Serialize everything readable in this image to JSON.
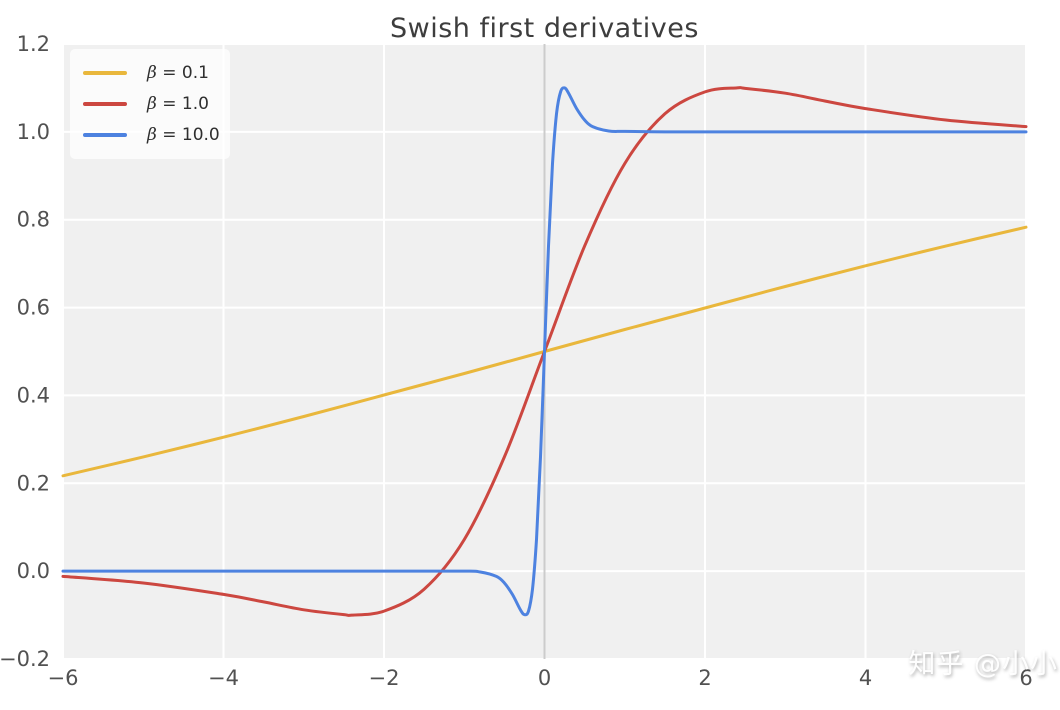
{
  "chart_data": {
    "type": "line",
    "title": "Swish first derivatives",
    "xlabel": "",
    "ylabel": "",
    "xlim": [
      -6,
      6
    ],
    "ylim": [
      -0.2,
      1.2
    ],
    "grid": true,
    "legend_position": "upper left",
    "plot_background": "#f0f0f0",
    "grid_color": "#ffffff",
    "tick_color": "#515151",
    "axvline": {
      "x": 0,
      "color": "#cccccc"
    },
    "x_ticks": {
      "values": [
        -6,
        -4,
        -2,
        0,
        2,
        4,
        6
      ],
      "labels": [
        "−6",
        "−4",
        "−2",
        "0",
        "2",
        "4",
        "6"
      ]
    },
    "y_ticks": {
      "values": [
        -0.2,
        0.0,
        0.2,
        0.4,
        0.6,
        0.8,
        1.0,
        1.2
      ],
      "labels": [
        "−0.2",
        "0.0",
        "0.2",
        "0.4",
        "0.6",
        "0.8",
        "1.0",
        "1.2"
      ]
    },
    "series": [
      {
        "name": "beta = 0.1",
        "symbol": "β",
        "value_text": " = 0.1",
        "color": "#e9b73c",
        "x": [
          -6,
          -5,
          -4,
          -3,
          -2,
          -1,
          0,
          1,
          2,
          3,
          4,
          5,
          6
        ],
        "y": [
          0.217,
          0.26,
          0.305,
          0.352,
          0.401,
          0.45,
          0.5,
          0.55,
          0.599,
          0.648,
          0.695,
          0.74,
          0.783
        ]
      },
      {
        "name": "beta = 1.0",
        "symbol": "β",
        "value_text": " = 1.0",
        "color": "#cc4740",
        "x": [
          -6,
          -5,
          -4,
          -3.5,
          -3,
          -2.5,
          -2.4,
          -2,
          -1.5,
          -1,
          -0.5,
          0,
          0.5,
          1,
          1.5,
          2,
          2.4,
          2.5,
          3,
          3.5,
          4,
          5,
          6
        ],
        "y": [
          -0.012,
          -0.027,
          -0.053,
          -0.07,
          -0.088,
          -0.099,
          -0.1,
          -0.091,
          -0.041,
          0.072,
          0.26,
          0.5,
          0.74,
          0.928,
          1.041,
          1.091,
          1.1,
          1.099,
          1.088,
          1.07,
          1.053,
          1.027,
          1.012
        ]
      },
      {
        "name": "beta = 10.0",
        "symbol": "β",
        "value_text": " = 10.0",
        "color": "#4d82e0",
        "x": [
          -6,
          -5,
          -4,
          -3,
          -2,
          -1,
          -0.8,
          -0.6,
          -0.5,
          -0.4,
          -0.3,
          -0.25,
          -0.2,
          -0.15,
          -0.1,
          -0.05,
          0,
          0.05,
          0.1,
          0.15,
          0.2,
          0.25,
          0.3,
          0.4,
          0.5,
          0.6,
          0.8,
          1,
          1.5,
          2,
          3,
          4,
          5,
          6
        ],
        "y": [
          0,
          0,
          0,
          0,
          0,
          0,
          -0.002,
          -0.012,
          -0.027,
          -0.053,
          -0.088,
          -0.099,
          -0.091,
          -0.041,
          0.072,
          0.26,
          0.5,
          0.74,
          0.928,
          1.041,
          1.091,
          1.1,
          1.088,
          1.053,
          1.027,
          1.012,
          1.002,
          1.001,
          1,
          1,
          1,
          1,
          1,
          1
        ]
      }
    ]
  },
  "watermark": {
    "text": "知乎 @小小"
  }
}
